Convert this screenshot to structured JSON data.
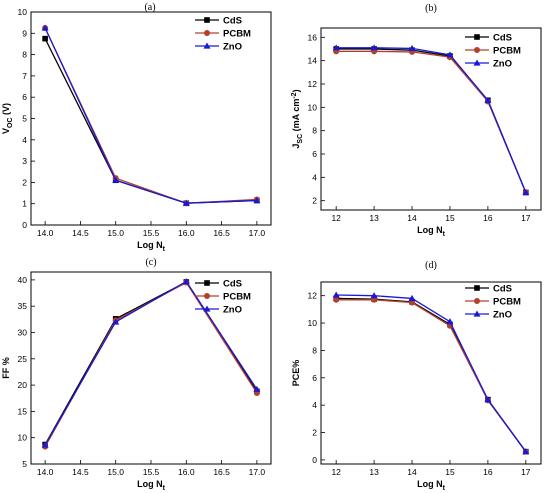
{
  "chart_data": [
    {
      "panel": "(a)",
      "type": "line",
      "x": [
        14.0,
        15.0,
        16.0,
        17.0
      ],
      "series": [
        {
          "name": "CdS",
          "values": [
            8.75,
            2.1,
            1.02,
            1.15
          ]
        },
        {
          "name": "PCBM",
          "values": [
            9.25,
            2.2,
            1.02,
            1.2
          ]
        },
        {
          "name": "ZnO",
          "values": [
            9.25,
            2.1,
            1.03,
            1.15
          ]
        }
      ],
      "xlabel": "Log N",
      "xlabel_sub": "t",
      "ylabel": "V",
      "ylabel_sub": "OC",
      "ylabel_suffix": " (V)",
      "xlim": [
        13.8,
        17.2
      ],
      "ylim": [
        0,
        10
      ],
      "xticks": [
        "14.0",
        "14.5",
        "15.0",
        "15.5",
        "16.0",
        "16.5",
        "17.0"
      ],
      "yticks": [
        "0",
        "1",
        "2",
        "3",
        "4",
        "5",
        "6",
        "7",
        "8",
        "9",
        "10"
      ],
      "legend": "top-right",
      "grid": false
    },
    {
      "panel": "(b)",
      "type": "line",
      "x": [
        12,
        13,
        14,
        15,
        16,
        17
      ],
      "series": [
        {
          "name": "CdS",
          "values": [
            15.0,
            15.0,
            14.9,
            14.4,
            10.6,
            2.7
          ]
        },
        {
          "name": "PCBM",
          "values": [
            14.8,
            14.8,
            14.75,
            14.3,
            10.5,
            2.7
          ]
        },
        {
          "name": "ZnO",
          "values": [
            15.1,
            15.1,
            15.05,
            14.5,
            10.6,
            2.7
          ]
        }
      ],
      "xlabel": "Log N",
      "xlabel_sub": "t",
      "ylabel": "J",
      "ylabel_sub": "SC",
      "ylabel_suffix": " (mA cm",
      "ylabel_sup": "-2",
      "ylabel_end": ")",
      "xlim": [
        11.6,
        17.4
      ],
      "ylim": [
        1.2,
        16.8
      ],
      "xticks": [
        "12",
        "13",
        "14",
        "15",
        "16",
        "17"
      ],
      "yticks": [
        "2",
        "4",
        "6",
        "8",
        "10",
        "12",
        "14",
        "16"
      ],
      "legend": "top-right",
      "grid": false
    },
    {
      "panel": "(c)",
      "type": "line",
      "x": [
        14.0,
        15.0,
        16.0,
        17.0
      ],
      "series": [
        {
          "name": "CdS",
          "values": [
            8.7,
            32.6,
            39.6,
            18.8
          ]
        },
        {
          "name": "PCBM",
          "values": [
            8.3,
            32.3,
            39.5,
            18.5
          ]
        },
        {
          "name": "ZnO",
          "values": [
            8.6,
            32.0,
            39.7,
            19.2
          ]
        }
      ],
      "xlabel": "Log N",
      "xlabel_sub": "t",
      "ylabel": "FF %",
      "xlim": [
        13.8,
        17.2
      ],
      "ylim": [
        5,
        41.5
      ],
      "xticks": [
        "14.0",
        "14.5",
        "15.0",
        "15.5",
        "16.0",
        "16.5",
        "17.0"
      ],
      "yticks": [
        "5",
        "10",
        "15",
        "20",
        "25",
        "30",
        "35",
        "40"
      ],
      "legend": "top-right",
      "grid": false
    },
    {
      "panel": "(d)",
      "type": "line",
      "x": [
        12,
        13,
        14,
        15,
        16,
        17
      ],
      "series": [
        {
          "name": "CdS",
          "values": [
            11.8,
            11.75,
            11.55,
            9.9,
            4.4,
            0.6
          ]
        },
        {
          "name": "PCBM",
          "values": [
            11.7,
            11.7,
            11.5,
            9.8,
            4.35,
            0.6
          ]
        },
        {
          "name": "ZnO",
          "values": [
            12.05,
            12.0,
            11.8,
            10.1,
            4.4,
            0.6
          ]
        }
      ],
      "xlabel": "Log N",
      "xlabel_sub": "t",
      "ylabel": "PCE%",
      "xlim": [
        11.6,
        17.4
      ],
      "ylim": [
        -0.3,
        13
      ],
      "xticks": [
        "12",
        "13",
        "14",
        "15",
        "16",
        "17"
      ],
      "yticks": [
        "0",
        "2",
        "4",
        "6",
        "8",
        "10",
        "12"
      ],
      "legend": "top-right",
      "grid": false
    }
  ],
  "series_colors": {
    "CdS": "#000000",
    "PCBM": "#b5402a",
    "ZnO": "#1a1ad6"
  },
  "series_markers": {
    "CdS": "square",
    "PCBM": "circle",
    "ZnO": "triangle"
  }
}
